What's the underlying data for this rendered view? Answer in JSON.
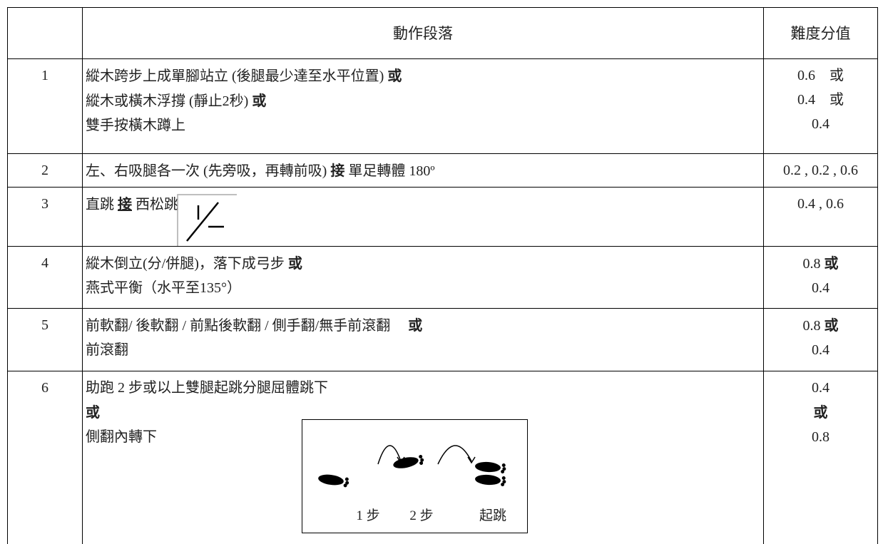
{
  "table": {
    "header": {
      "action": "動作段落",
      "score": "難度分值"
    },
    "rows": [
      {
        "no": "1",
        "action": [
          [
            {
              "text": "縱木跨步上成單腳站立 (後腿最少達至水平位置) "
            },
            {
              "text": "或",
              "bold": true
            }
          ],
          [
            {
              "text": "縱木或橫木浮撐 (靜止2秒) "
            },
            {
              "text": "或",
              "bold": true
            }
          ],
          [
            {
              "text": "雙手按橫木蹲上"
            }
          ]
        ],
        "score": [
          [
            {
              "text": "0.6　或"
            }
          ],
          [
            {
              "text": "0.4　或"
            }
          ],
          [
            {
              "text": "0.4"
            }
          ]
        ]
      },
      {
        "no": "2",
        "action": [
          [
            {
              "text": "左、右吸腿各一次 (先旁吸，再轉前吸) "
            },
            {
              "text": "接",
              "bold": true
            },
            {
              "text": " 單足轉體 180º"
            }
          ]
        ],
        "score": [
          [
            {
              "text": "0.2 , 0.2 , 0.6"
            }
          ]
        ]
      },
      {
        "no": "3",
        "action": [
          [
            {
              "text": "直跳 "
            },
            {
              "text": "接",
              "bold": true,
              "underline": true
            },
            {
              "text": " 西松跳"
            }
          ]
        ],
        "icon": true,
        "score": [
          [
            {
              "text": "0.4 , 0.6"
            }
          ]
        ]
      },
      {
        "no": "4",
        "action": [
          [
            {
              "text": "縱木倒立(分/併腿)，落下成弓步 "
            },
            {
              "text": "或",
              "bold": true
            }
          ],
          [
            {
              "text": "燕式平衡（水平至135°）"
            }
          ]
        ],
        "score": [
          [
            {
              "text": "0.8 "
            },
            {
              "text": "或",
              "bold": true
            }
          ],
          [
            {
              "text": "0.4"
            }
          ]
        ]
      },
      {
        "no": "5",
        "action": [
          [
            {
              "text": "前軟翻/ 後軟翻 / 前點後軟翻 / 側手翻/無手前滾翻　 "
            },
            {
              "text": "或",
              "bold": true
            }
          ],
          [
            {
              "text": "前滾翻"
            }
          ]
        ],
        "score": [
          [
            {
              "text": "0.8 "
            },
            {
              "text": "或",
              "bold": true
            }
          ],
          [
            {
              "text": "0.4"
            }
          ]
        ]
      },
      {
        "no": "6",
        "action": [
          [
            {
              "text": "助跑 2 步或以上雙腿起跳分腿屈體跳下"
            }
          ],
          [
            {
              "text": "或",
              "bold": true
            }
          ],
          [
            {
              "text": "側翻內轉下"
            }
          ]
        ],
        "diagram_labels": [
          "1 步",
          "2 步",
          "起跳"
        ],
        "score": [
          [
            {
              "text": "0.4"
            }
          ],
          [
            {
              "text": "或",
              "bold": true
            }
          ],
          [
            {
              "text": "0.8"
            }
          ]
        ]
      }
    ]
  }
}
